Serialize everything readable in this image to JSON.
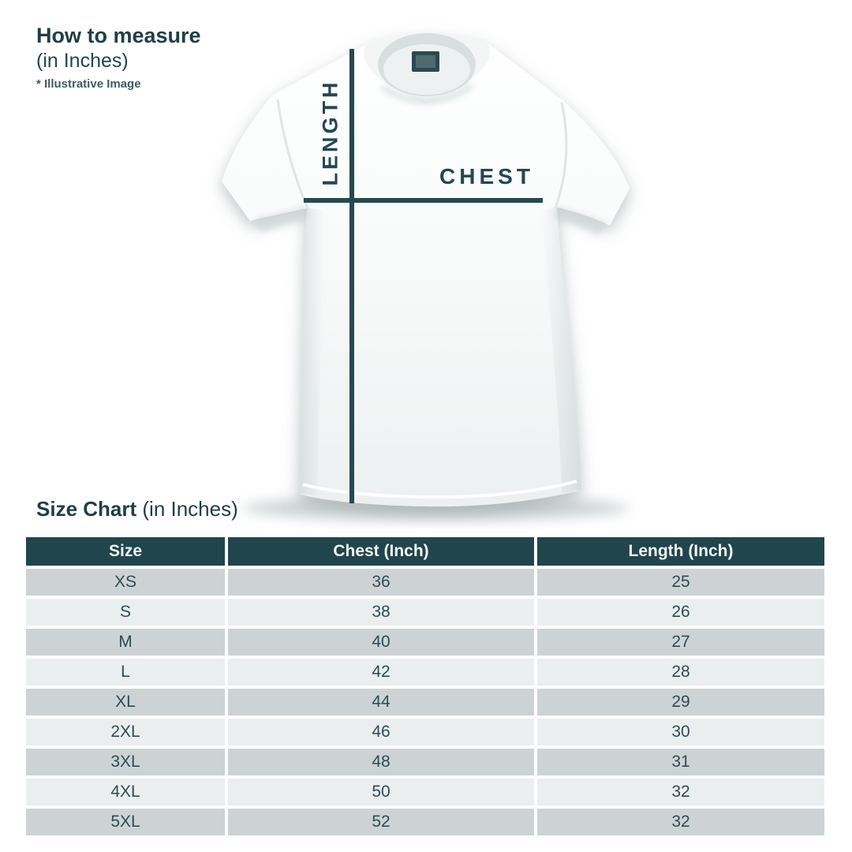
{
  "colors": {
    "teal_text": "#1e3f47",
    "table_header_bg": "#20454c",
    "table_header_text": "#f3f6f6",
    "row_dark": "#cdd3d4",
    "row_light": "#ebeeee",
    "cell_text": "#2d4c53",
    "measure_line": "#26494f",
    "note_text": "#3e5d64",
    "shirt_white": "#fbfcfc"
  },
  "how_to_measure": {
    "title": "How to measure",
    "subtitle": "(in Inches)",
    "note": "* Illustrative Image"
  },
  "diagram": {
    "length_label": "LENGTH",
    "chest_label": "CHEST"
  },
  "size_chart": {
    "title": "Size Chart",
    "subtitle": " (in Inches)",
    "columns": [
      "Size",
      "Chest (Inch)",
      "Length (Inch)"
    ],
    "rows": [
      [
        "XS",
        "36",
        "25"
      ],
      [
        "S",
        "38",
        "26"
      ],
      [
        "M",
        "40",
        "27"
      ],
      [
        "L",
        "42",
        "28"
      ],
      [
        "XL",
        "44",
        "29"
      ],
      [
        "2XL",
        "46",
        "30"
      ],
      [
        "3XL",
        "48",
        "31"
      ],
      [
        "4XL",
        "50",
        "32"
      ],
      [
        "5XL",
        "52",
        "32"
      ]
    ]
  },
  "chart_data": {
    "type": "table",
    "title": "Size Chart (in Inches)",
    "columns": [
      "Size",
      "Chest (Inch)",
      "Length (Inch)"
    ],
    "rows": [
      [
        "XS",
        36,
        25
      ],
      [
        "S",
        38,
        26
      ],
      [
        "M",
        40,
        27
      ],
      [
        "L",
        42,
        28
      ],
      [
        "XL",
        44,
        29
      ],
      [
        "2XL",
        46,
        30
      ],
      [
        "3XL",
        48,
        31
      ],
      [
        "4XL",
        50,
        32
      ],
      [
        "5XL",
        52,
        32
      ]
    ]
  }
}
